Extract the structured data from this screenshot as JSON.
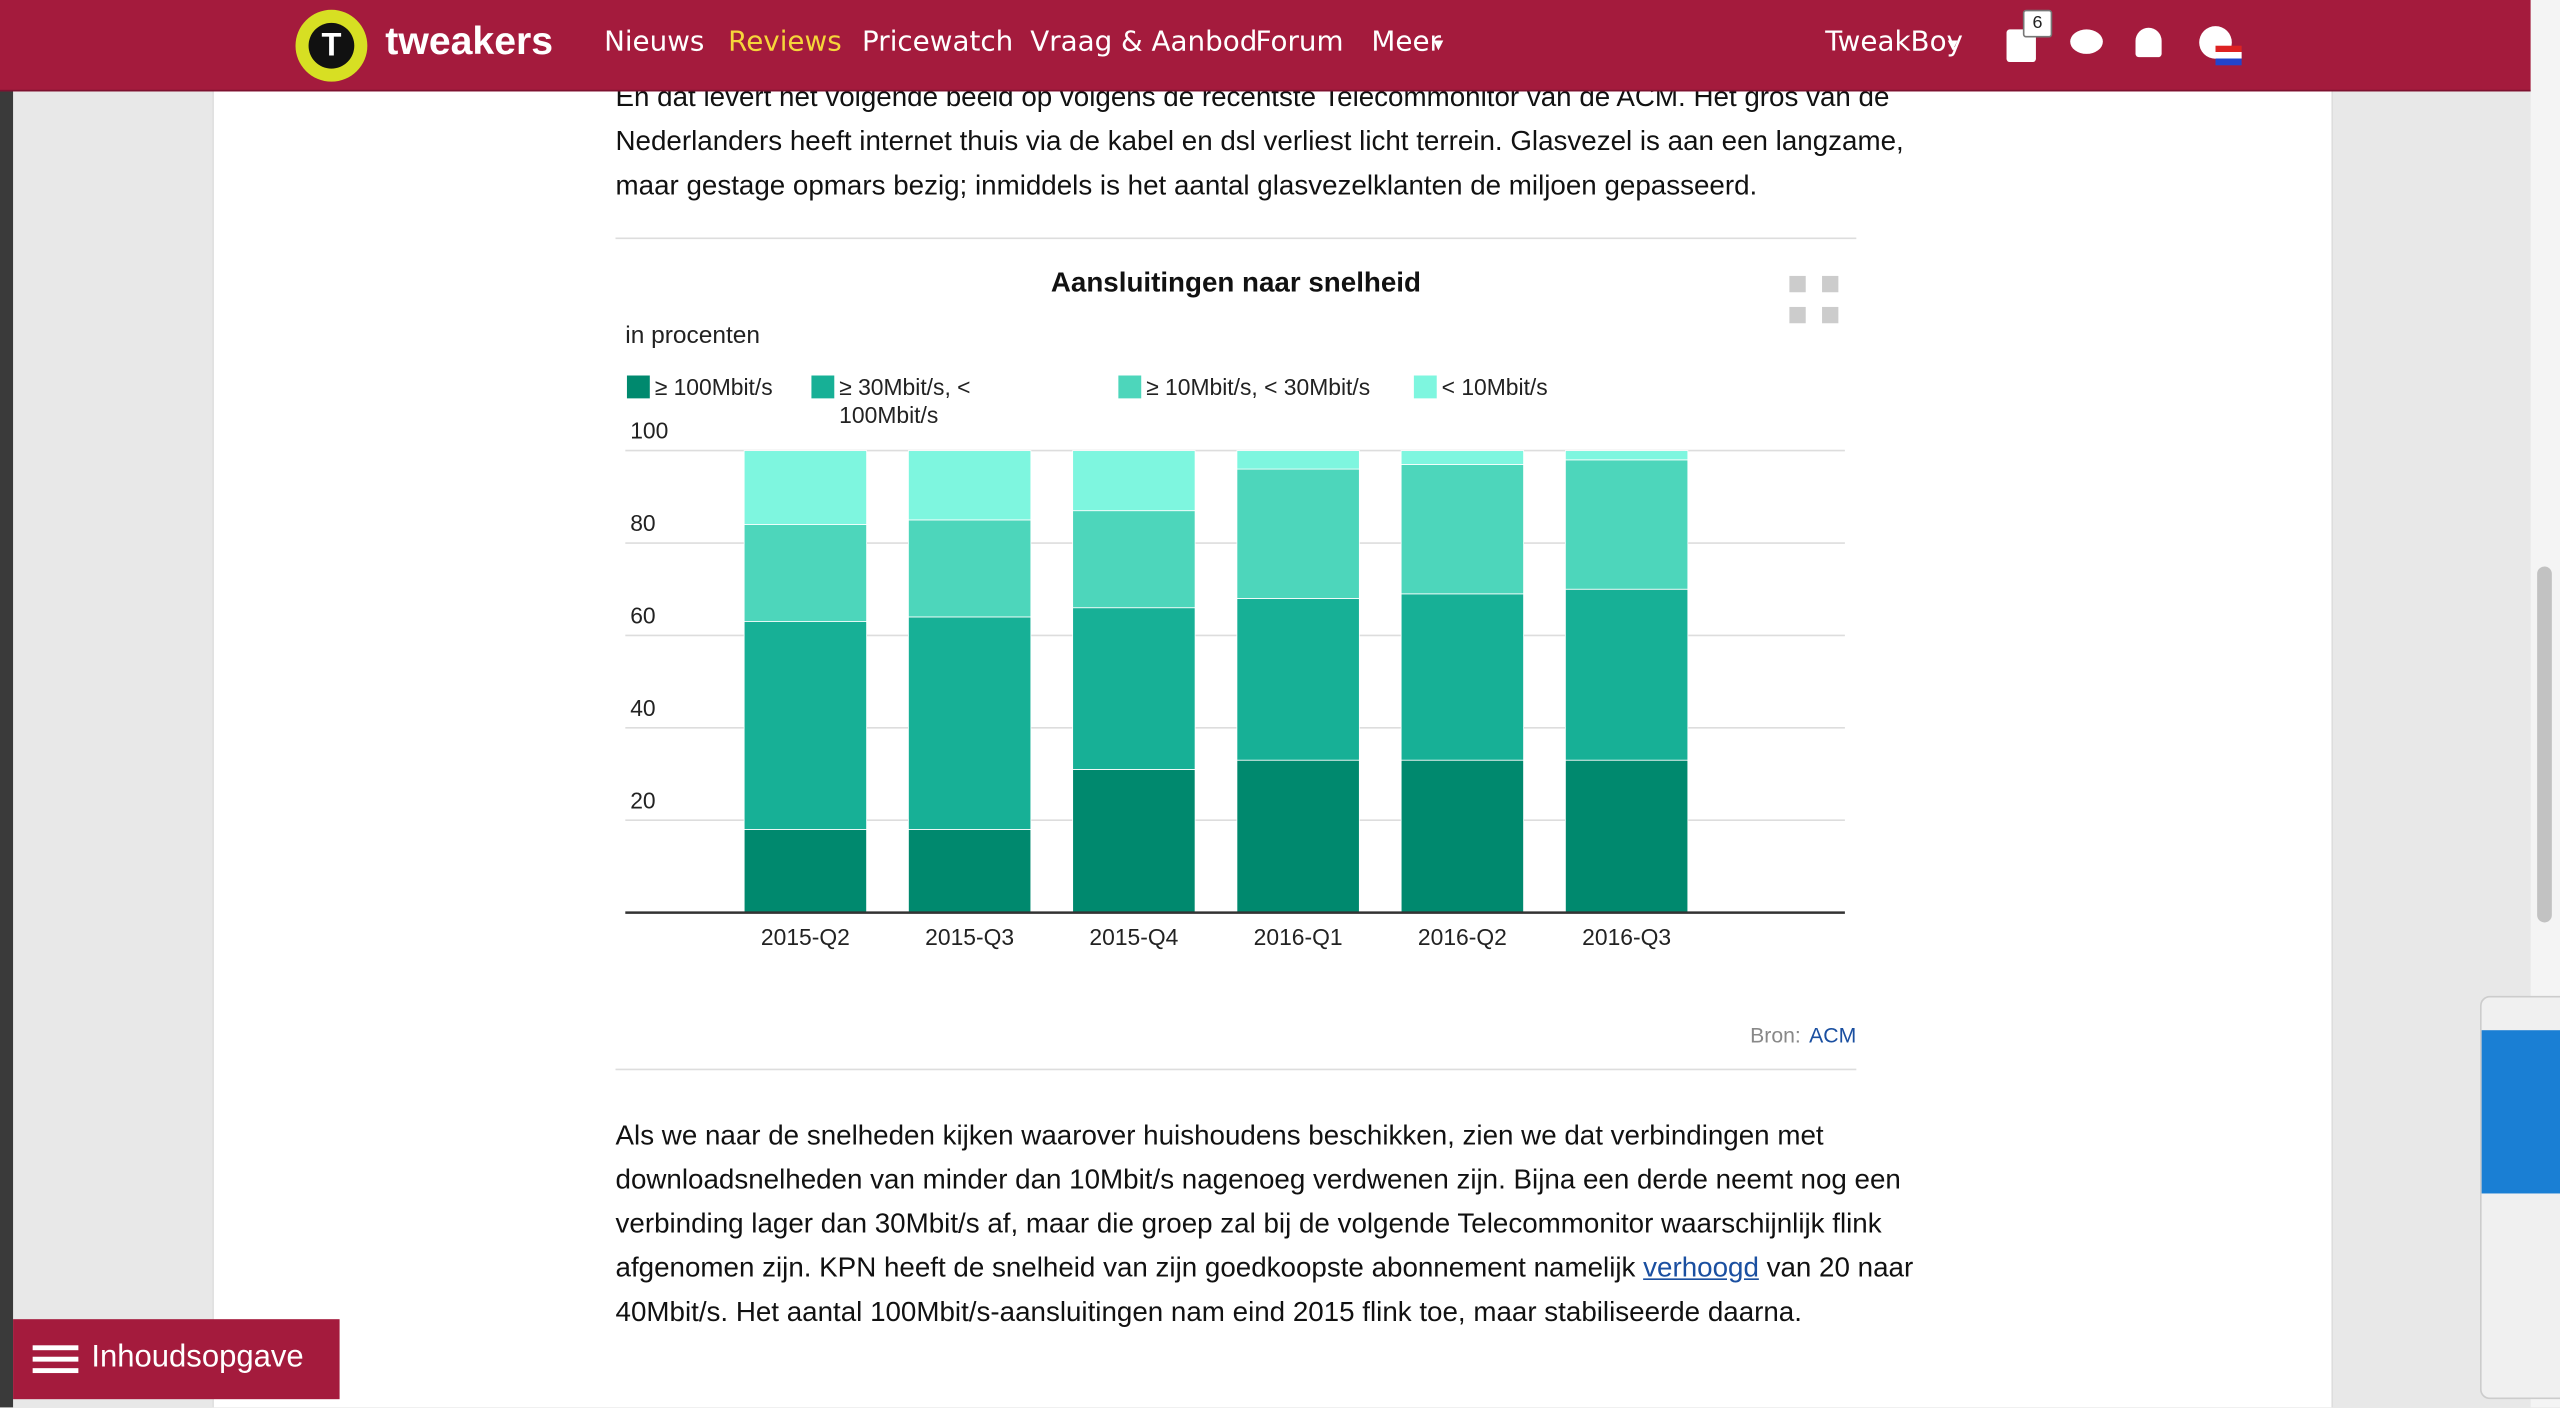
{
  "nav": {
    "logo": "tweakers",
    "items": [
      "Nieuws",
      "Reviews",
      "Pricewatch",
      "Vraag & Aanbod",
      "Forum",
      "Meer"
    ],
    "user": "TweakBoy",
    "badge": "6"
  },
  "article": {
    "paragraph_1": "En dat levert het volgende beeld op volgens de recentste Telecommonitor van de ACM. Het gros van de Nederlanders heeft internet thuis via de kabel en dsl verliest licht terrein. Glasvezel is aan een langzame, maar gestage opmars bezig; inmiddels is het aantal glasvezelklanten de miljoen gepasseerd.",
    "paragraph_2": {
      "before": "Als we naar de snelheden kijken waarover huishoudens beschikken, zien we dat verbindingen met downloadsnelheden van minder dan 10Mbit/s nagenoeg verdwenen zijn. Bijna een derde neemt nog een verbinding lager dan 30Mbit/s af, maar die groep zal bij de volgende Telecommonitor waarschijnlijk flink afgenomen zijn. KPN heeft de snelheid van zijn goedkoopste abonnement namelijk ",
      "link": "verhoogd",
      "after": " van 20 naar 40Mbit/s. Het aantal 100Mbit/s-aansluitingen nam eind 2015 flink toe, maar stabiliseerde daarna."
    }
  },
  "chart_data": {
    "type": "stacked_bar",
    "title": "Aansluitingen naar snelheid",
    "y_label": "in procenten",
    "categories": [
      "2015-Q2",
      "2015-Q3",
      "2015-Q4",
      "2016-Q1",
      "2016-Q2",
      "2016-Q3"
    ],
    "series": [
      {
        "name": "≥ 100Mbit/s",
        "color": "#00896e",
        "values": [
          18,
          18,
          31,
          33,
          33,
          33
        ]
      },
      {
        "name": "≥ 30Mbit/s, < 100Mbit/s",
        "color": "#17b096",
        "values": [
          45,
          46,
          35,
          35,
          36,
          37
        ]
      },
      {
        "name": "≥ 10Mbit/s, < 30Mbit/s",
        "color": "#4dd6bb",
        "values": [
          21,
          21,
          21,
          28,
          28,
          28
        ]
      },
      {
        "name": "< 10Mbit/s",
        "color": "#7ef6df",
        "values": [
          16,
          15,
          13,
          4,
          3,
          2
        ]
      }
    ],
    "ylim": [
      0,
      100
    ],
    "yticks": [
      20,
      40,
      60,
      80,
      100
    ],
    "grid": true,
    "source_label": "Bron:",
    "source": "ACM"
  },
  "toc_button": "Inhoudsopgave"
}
